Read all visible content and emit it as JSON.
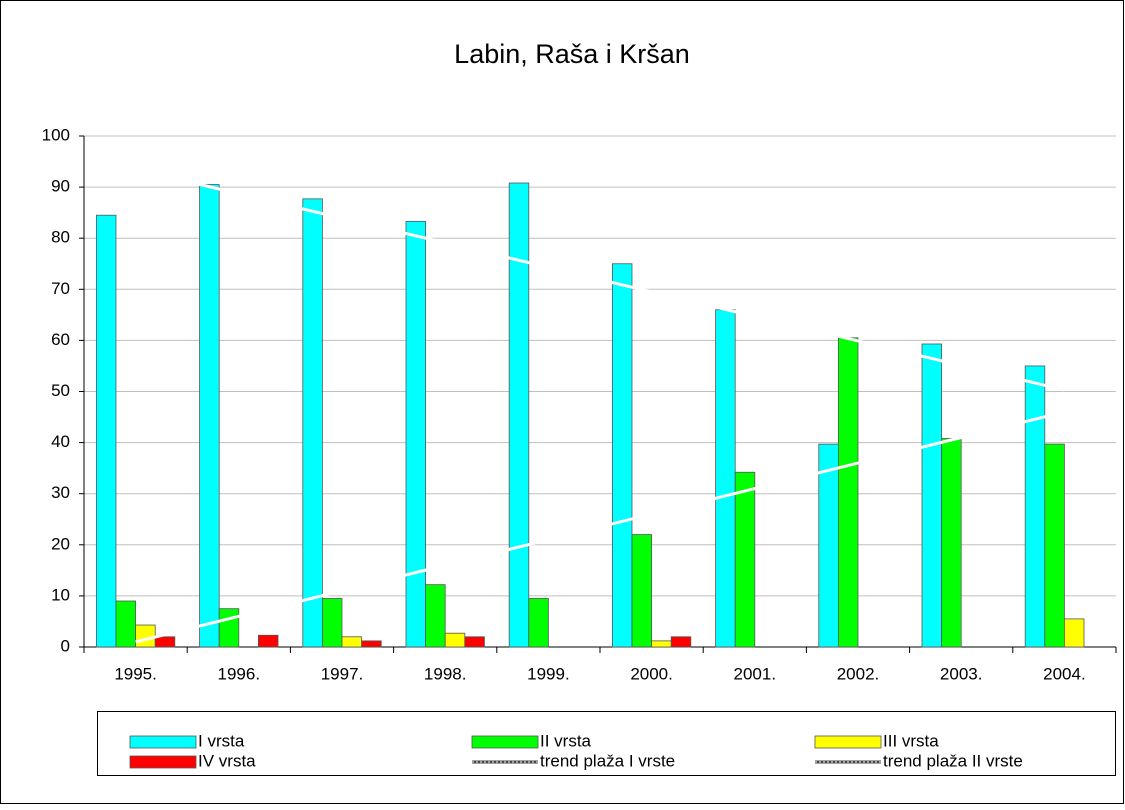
{
  "chart_data": {
    "type": "bar",
    "title": "Labin, Raša i Kršan",
    "categories": [
      "1995.",
      "1996.",
      "1997.",
      "1998.",
      "1999.",
      "2000.",
      "2001.",
      "2002.",
      "2003.",
      "2004."
    ],
    "series": [
      {
        "name": "I vrsta",
        "color": "#00ffff",
        "values": [
          84.5,
          90.5,
          87.7,
          83.3,
          90.8,
          75,
          66,
          39.7,
          59.3,
          55
        ]
      },
      {
        "name": "II vrsta",
        "color": "#00ff00",
        "values": [
          9,
          7.5,
          9.5,
          12.2,
          9.5,
          22,
          34.2,
          60.5,
          40.8,
          39.7
        ]
      },
      {
        "name": "III vrsta",
        "color": "#ffff00",
        "values": [
          4.3,
          null,
          2,
          2.7,
          null,
          1.2,
          null,
          null,
          null,
          5.5
        ]
      },
      {
        "name": "IV vrsta",
        "color": "#ff0000",
        "values": [
          2,
          2.3,
          1.2,
          2,
          null,
          2,
          null,
          null,
          null,
          null
        ]
      },
      {
        "name": "trend plaža I vrste",
        "color": "#ffffff",
        "type": "line",
        "values": [
          93.5,
          88.7,
          83.9,
          79.1,
          74.3,
          69.5,
          64.7,
          59.9,
          55.1,
          50.3
        ]
      },
      {
        "name": "trend plaža II vrste",
        "color": "#ffffff",
        "type": "line",
        "values": [
          1,
          6,
          11,
          16,
          21,
          26,
          31,
          36,
          41,
          46
        ]
      }
    ],
    "ylim": [
      0,
      100
    ],
    "yticks": [
      0,
      10,
      20,
      30,
      40,
      50,
      60,
      70,
      80,
      90,
      100
    ],
    "grid": true,
    "legend": "bottom"
  }
}
